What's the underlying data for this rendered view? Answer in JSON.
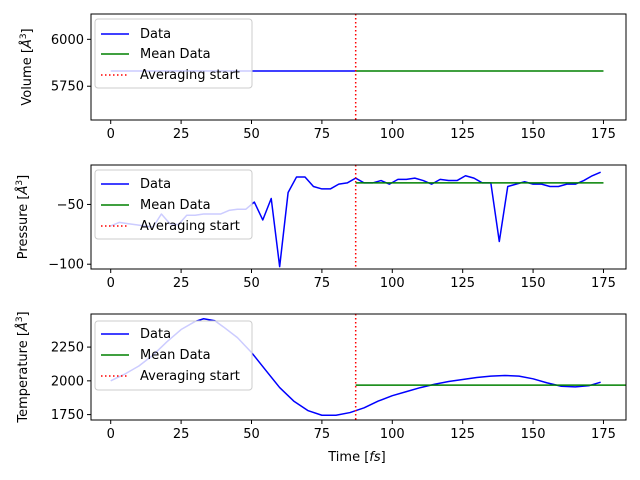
{
  "chart_data": [
    {
      "type": "line",
      "title": "",
      "xlabel": "",
      "ylabel": "Volume [$\\AA^3$]",
      "ylabel_main": "Volume [",
      "ylabel_unit": "Å",
      "ylabel_sup": "3",
      "ylabel_end": "]",
      "xlim": [
        -7,
        183
      ],
      "ylim": [
        5570,
        6135
      ],
      "xticks": [
        0,
        25,
        50,
        75,
        100,
        125,
        150,
        175
      ],
      "yticks": [
        5750,
        6000
      ],
      "show_xtick_labels": true,
      "legend": {
        "position": "top-left",
        "entries": [
          "Data",
          "Mean Data",
          "Averaging start"
        ]
      },
      "series": [
        {
          "name": "Data",
          "color": "#0000ff",
          "style": "solid",
          "x": [
            0,
            87
          ],
          "y": [
            5831,
            5831
          ]
        },
        {
          "name": "Mean Data",
          "color": "#008000",
          "style": "solid",
          "x": [
            87,
            175
          ],
          "y": [
            5831,
            5831
          ]
        }
      ],
      "vline": {
        "name": "Averaging start",
        "x": 87,
        "color": "#ff0000",
        "style": "dotted"
      }
    },
    {
      "type": "line",
      "title": "",
      "xlabel": "",
      "ylabel": "Pressure [$\\AA^3$]",
      "ylabel_main": "Pressure [",
      "ylabel_unit": "Å",
      "ylabel_sup": "3",
      "ylabel_end": "]",
      "xlim": [
        -7,
        183
      ],
      "ylim": [
        -104,
        -17
      ],
      "xticks": [
        0,
        25,
        50,
        75,
        100,
        125,
        150,
        175
      ],
      "yticks": [
        -100,
        -50
      ],
      "show_xtick_labels": true,
      "legend": {
        "position": "top-left",
        "entries": [
          "Data",
          "Mean Data",
          "Averaging start"
        ]
      },
      "series": [
        {
          "name": "Data",
          "color": "#0000ff",
          "style": "solid",
          "x": [
            0,
            3,
            6,
            9,
            12,
            15,
            18,
            21,
            24,
            27,
            30,
            33,
            36,
            39,
            42,
            45,
            48,
            51,
            54,
            57,
            60,
            63,
            66,
            69,
            72,
            75,
            78,
            81,
            84,
            87,
            90,
            93,
            96,
            99,
            102,
            105,
            108,
            111,
            114,
            117,
            120,
            123,
            126,
            129,
            132,
            135,
            138,
            141,
            144,
            147,
            150,
            153,
            156,
            159,
            162,
            165,
            168,
            171,
            174
          ],
          "y": [
            -68,
            -65,
            -66,
            -67,
            -68,
            -69,
            -58,
            -66,
            -67,
            -59,
            -59,
            -58,
            -58,
            -58,
            -55,
            -54,
            -54,
            -48,
            -63,
            -45,
            -102,
            -40,
            -27,
            -27,
            -35,
            -37,
            -37,
            -33,
            -32,
            -28,
            -32,
            -32,
            -30,
            -33,
            -29,
            -29,
            -28,
            -30,
            -33,
            -29,
            -30,
            -30,
            -26,
            -28,
            -32,
            -32,
            -81,
            -35,
            -33,
            -31,
            -33,
            -33,
            -35,
            -35,
            -33,
            -33,
            -30,
            -26,
            -23
          ]
        },
        {
          "name": "Mean Data",
          "color": "#008000",
          "style": "solid",
          "x": [
            87,
            175
          ],
          "y": [
            -32,
            -32
          ]
        }
      ],
      "vline": {
        "name": "Averaging start",
        "x": 87,
        "color": "#ff0000",
        "style": "dotted"
      }
    },
    {
      "type": "line",
      "title": "",
      "xlabel": "Time [$fs$]",
      "xlabel_main": "Time [",
      "xlabel_it": "fs",
      "xlabel_end": "]",
      "ylabel": "Temperature [$\\AA^3$]",
      "ylabel_main": "Temperature [",
      "ylabel_unit": "Å",
      "ylabel_sup": "3",
      "ylabel_end": "]",
      "xlim": [
        -7,
        183
      ],
      "ylim": [
        1710,
        2495
      ],
      "xticks": [
        0,
        25,
        50,
        75,
        100,
        125,
        150,
        175
      ],
      "yticks": [
        1750,
        2000,
        2250
      ],
      "show_xtick_labels": true,
      "legend": {
        "position": "top-left",
        "entries": [
          "Data",
          "Mean Data",
          "Averaging start"
        ]
      },
      "series": [
        {
          "name": "Data",
          "color": "#0000ff",
          "style": "solid",
          "x": [
            0,
            5,
            10,
            15,
            20,
            25,
            30,
            33,
            37,
            40,
            45,
            50,
            55,
            60,
            65,
            70,
            75,
            80,
            85,
            90,
            95,
            100,
            105,
            110,
            115,
            120,
            125,
            130,
            135,
            140,
            145,
            150,
            155,
            160,
            165,
            170,
            174
          ],
          "y": [
            2000,
            2050,
            2110,
            2190,
            2290,
            2380,
            2440,
            2460,
            2445,
            2400,
            2320,
            2210,
            2080,
            1950,
            1850,
            1780,
            1745,
            1745,
            1765,
            1800,
            1850,
            1890,
            1920,
            1950,
            1975,
            1995,
            2010,
            2025,
            2035,
            2040,
            2035,
            2015,
            1985,
            1960,
            1955,
            1965,
            1990
          ]
        },
        {
          "name": "Mean Data",
          "color": "#008000",
          "style": "solid",
          "x": [
            87,
            183
          ],
          "y": [
            1968,
            1968
          ]
        }
      ],
      "vline": {
        "name": "Averaging start",
        "x": 87,
        "color": "#ff0000",
        "style": "dotted"
      }
    }
  ]
}
